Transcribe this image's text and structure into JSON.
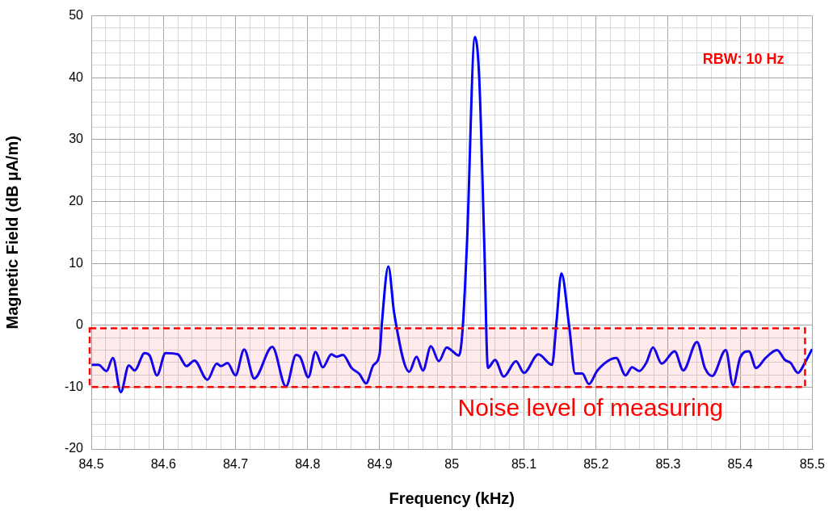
{
  "chart_data": {
    "type": "line",
    "xlabel": "Frequency (kHz)",
    "ylabel": "Magnetic Field (dB µA/m)",
    "x": [
      84.502,
      84.51,
      84.521,
      84.53,
      84.541,
      84.552,
      84.56,
      84.574,
      84.581,
      84.591,
      84.603,
      84.62,
      84.632,
      84.643,
      84.661,
      84.674,
      84.68,
      84.689,
      84.7,
      84.712,
      84.726,
      84.751,
      84.77,
      84.784,
      84.79,
      84.801,
      84.811,
      84.821,
      84.833,
      84.84,
      84.849,
      84.861,
      84.872,
      84.881,
      84.891,
      84.9,
      84.903,
      84.912,
      84.92,
      84.941,
      84.951,
      84.96,
      84.971,
      84.982,
      84.993,
      84.999,
      85.01,
      85.015,
      85.021,
      85.032,
      85.038,
      85.045,
      85.05,
      85.06,
      85.072,
      85.089,
      85.1,
      85.12,
      85.139,
      85.145,
      85.152,
      85.163,
      85.171,
      85.181,
      85.19,
      85.202,
      85.228,
      85.241,
      85.25,
      85.26,
      85.27,
      85.279,
      85.291,
      85.309,
      85.321,
      85.34,
      85.351,
      85.361,
      85.38,
      85.39,
      85.4,
      85.412,
      85.422,
      85.435,
      85.451,
      85.462,
      85.47,
      85.48,
      85.49,
      85.499
    ],
    "series": [
      {
        "color": "#0000ff",
        "values": [
          -6.4,
          -6.4,
          -7.4,
          -5.3,
          -10.8,
          -6.5,
          -7.3,
          -4.5,
          -4.9,
          -8.1,
          -4.5,
          -4.7,
          -6.6,
          -5.7,
          -8.8,
          -6.2,
          -6.6,
          -6.1,
          -8.1,
          -3.9,
          -8.6,
          -3.5,
          -9.9,
          -4.8,
          -5.2,
          -8.4,
          -4.3,
          -6.8,
          -4.7,
          -5.1,
          -4.8,
          -6.9,
          -7.9,
          -9.4,
          -6.5,
          -4.5,
          0.3,
          9.5,
          2,
          -7.5,
          -5.1,
          -7.3,
          -3.4,
          -5.8,
          -3.6,
          -4,
          -4.9,
          -0.6,
          13.2,
          46.6,
          40,
          13.2,
          -6.9,
          -5.6,
          -8.3,
          -5.8,
          -7.7,
          -4.7,
          -6.4,
          0.3,
          8.4,
          -0.4,
          -7.8,
          -7.8,
          -9.5,
          -7.3,
          -5.3,
          -8.1,
          -6.8,
          -7.4,
          -6,
          -3.6,
          -6.2,
          -4.2,
          -7.3,
          -2.7,
          -6.9,
          -8.2,
          -4,
          -9.7,
          -5.2,
          -4.2,
          -6.9,
          -5.3,
          -4,
          -5.6,
          -6.1,
          -7.7,
          -6,
          -4
        ]
      }
    ],
    "xlim": [
      84.5,
      85.5
    ],
    "xticks": [
      84.5,
      {
        "value": 84.52,
        "label": null
      },
      {
        "value": 84.54,
        "label": null
      },
      {
        "value": 84.56,
        "label": null
      },
      {
        "value": 84.58,
        "label": null
      },
      84.6,
      {
        "value": 84.62,
        "label": null
      },
      {
        "value": 84.64,
        "label": null
      },
      {
        "value": 84.66,
        "label": null
      },
      {
        "value": 84.68,
        "label": null
      },
      84.7,
      {
        "value": 84.72,
        "label": null
      },
      {
        "value": 84.74,
        "label": null
      },
      {
        "value": 84.76,
        "label": null
      },
      {
        "value": 84.78,
        "label": null
      },
      84.8,
      {
        "value": 84.82,
        "label": null
      },
      {
        "value": 84.84,
        "label": null
      },
      {
        "value": 84.86,
        "label": null
      },
      {
        "value": 84.88,
        "label": null
      },
      84.9,
      {
        "value": 84.92,
        "label": null
      },
      {
        "value": 84.94,
        "label": null
      },
      {
        "value": 84.96,
        "label": null
      },
      {
        "value": 84.98,
        "label": null
      },
      85,
      {
        "value": 85.02,
        "label": null
      },
      {
        "value": 85.04,
        "label": null
      },
      {
        "value": 85.06,
        "label": null
      },
      {
        "value": 85.08,
        "label": null
      },
      85.1,
      {
        "value": 85.12,
        "label": null
      },
      {
        "value": 85.14,
        "label": null
      },
      {
        "value": 85.16,
        "label": null
      },
      {
        "value": 85.18,
        "label": null
      },
      85.2,
      {
        "value": 85.22,
        "label": null
      },
      {
        "value": 85.24,
        "label": null
      },
      {
        "value": 85.26,
        "label": null
      },
      {
        "value": 85.28,
        "label": null
      },
      85.3,
      {
        "value": 85.32,
        "label": null
      },
      {
        "value": 85.34,
        "label": null
      },
      {
        "value": 85.36,
        "label": null
      },
      {
        "value": 85.38,
        "label": null
      },
      85.4,
      {
        "value": 85.42,
        "label": null
      },
      {
        "value": 85.44,
        "label": null
      },
      {
        "value": 85.46,
        "label": null
      },
      {
        "value": 85.48,
        "label": null
      },
      85.5
    ],
    "ylim": [
      -20,
      50
    ],
    "yticks": [
      -20,
      {
        "value": -18,
        "label": null
      },
      {
        "value": -16,
        "label": null
      },
      {
        "value": -14,
        "label": null
      },
      {
        "value": -12,
        "label": null
      },
      -10,
      {
        "value": -8,
        "label": null
      },
      {
        "value": -6,
        "label": null
      },
      {
        "value": -4,
        "label": null
      },
      {
        "value": -2,
        "label": null
      },
      0,
      {
        "value": 2,
        "label": null
      },
      {
        "value": 4,
        "label": null
      },
      {
        "value": 6,
        "label": null
      },
      {
        "value": 8,
        "label": null
      },
      10,
      {
        "value": 12,
        "label": null
      },
      {
        "value": 14,
        "label": null
      },
      {
        "value": 16,
        "label": null
      },
      {
        "value": 18,
        "label": null
      },
      20,
      {
        "value": 22,
        "label": null
      },
      {
        "value": 24,
        "label": null
      },
      {
        "value": 26,
        "label": null
      },
      {
        "value": 28,
        "label": null
      },
      30,
      {
        "value": 32,
        "label": null
      },
      {
        "value": 34,
        "label": null
      },
      {
        "value": 36,
        "label": null
      },
      {
        "value": 38,
        "label": null
      },
      40,
      {
        "value": 42,
        "label": null
      },
      {
        "value": 44,
        "label": null
      },
      {
        "value": 46,
        "label": null
      },
      {
        "value": 48,
        "label": null
      },
      50
    ],
    "grid": true,
    "marker": "none",
    "line_style": "solid",
    "legend": false,
    "bands": [
      {
        "axis": "y",
        "from": -10,
        "to": -0.5,
        "label": "Noise level of measuring",
        "color": "#ff0000"
      }
    ],
    "annotations": [
      "RBW: 10 Hz"
    ]
  }
}
